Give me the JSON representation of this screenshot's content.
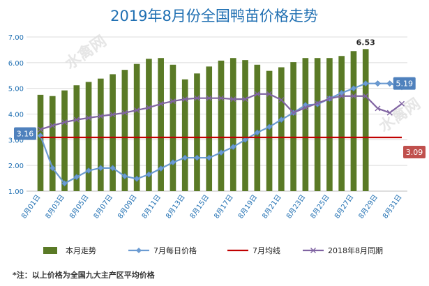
{
  "chart_data": {
    "type": "bar+line",
    "title": "2019年8月份全国鸭苗价格走势",
    "xlabel": "",
    "ylabel": "",
    "ylim": [
      1.0,
      7.0
    ],
    "yticks": [
      "1.00",
      "2.00",
      "3.00",
      "4.00",
      "5.00",
      "6.00",
      "7.00"
    ],
    "grid": true,
    "legend_position": "bottom",
    "days": [
      "8月01日",
      "8月02日",
      "8月03日",
      "8月04日",
      "8月05日",
      "8月06日",
      "8月07日",
      "8月08日",
      "8月09日",
      "8月10日",
      "8月11日",
      "8月12日",
      "8月13日",
      "8月14日",
      "8月15日",
      "8月16日",
      "8月17日",
      "8月18日",
      "8月19日",
      "8月20日",
      "8月21日",
      "8月22日",
      "8月23日",
      "8月24日",
      "8月25日",
      "8月26日",
      "8月27日",
      "8月28日",
      "8月29日",
      "8月30日",
      "8月31日"
    ],
    "x_tick_labels": [
      "8月01日",
      "8月03日",
      "8月05日",
      "8月07日",
      "8月09日",
      "8月11日",
      "8月13日",
      "8月15日",
      "8月17日",
      "8月19日",
      "8月21日",
      "8月23日",
      "8月25日",
      "8月27日",
      "8月29日",
      "8月31日"
    ],
    "series": [
      {
        "name": "本月走势",
        "kind": "bar",
        "color": "#5a7a26",
        "values": [
          4.75,
          4.7,
          4.92,
          5.12,
          5.25,
          5.38,
          5.55,
          5.72,
          5.95,
          6.15,
          6.18,
          5.92,
          5.35,
          5.58,
          5.85,
          6.08,
          6.18,
          6.1,
          5.92,
          5.68,
          5.82,
          6.02,
          6.18,
          6.18,
          6.18,
          6.26,
          6.45,
          6.53,
          null,
          null,
          null
        ]
      },
      {
        "name": "7月每日价格",
        "kind": "line",
        "marker": "diamond",
        "color": "#6b9bd2",
        "values": [
          3.16,
          1.9,
          1.3,
          1.55,
          1.8,
          1.9,
          1.9,
          1.58,
          1.48,
          1.65,
          1.88,
          2.12,
          2.3,
          2.3,
          2.3,
          2.5,
          2.72,
          3.0,
          3.28,
          3.5,
          3.78,
          4.05,
          4.35,
          4.38,
          4.6,
          4.82,
          5.0,
          5.19,
          5.19,
          5.19,
          5.05
        ]
      },
      {
        "name": "7月均线",
        "kind": "line",
        "color": "#c00000",
        "values": [
          3.09,
          3.09,
          3.09,
          3.09,
          3.09,
          3.09,
          3.09,
          3.09,
          3.09,
          3.09,
          3.09,
          3.09,
          3.09,
          3.09,
          3.09,
          3.09,
          3.09,
          3.09,
          3.09,
          3.09,
          3.09,
          3.09,
          3.09,
          3.09,
          3.09,
          3.09,
          3.09,
          3.09,
          3.09,
          3.09,
          3.09
        ]
      },
      {
        "name": "2018年8月同期",
        "kind": "line",
        "marker": "x",
        "color": "#8064a2",
        "values": [
          3.4,
          3.55,
          3.68,
          3.78,
          3.85,
          3.92,
          3.98,
          4.05,
          4.15,
          4.25,
          4.4,
          4.5,
          4.58,
          4.62,
          4.62,
          4.62,
          4.58,
          4.58,
          4.78,
          4.78,
          4.55,
          4.05,
          4.25,
          4.42,
          4.6,
          4.7,
          4.7,
          4.7,
          4.22,
          4.05,
          4.4
        ]
      }
    ],
    "annotations": [
      {
        "text": "6.53",
        "target": "本月走势",
        "day_index": 27,
        "style": "bold"
      },
      {
        "text": "5.19",
        "target": "7月每日价格",
        "day_index": 29,
        "style": "callout",
        "color": "#4f81bd"
      },
      {
        "text": "3.16",
        "target": "7月每日价格",
        "day_index": 0,
        "style": "callout",
        "color": "#4f81bd"
      },
      {
        "text": "3.09",
        "target": "7月均线",
        "day_index": 30,
        "style": "callout",
        "color": "#c0504d"
      }
    ]
  },
  "note": "*注：以上价格为全国九大主产区平均价格",
  "watermark": "水禽网"
}
